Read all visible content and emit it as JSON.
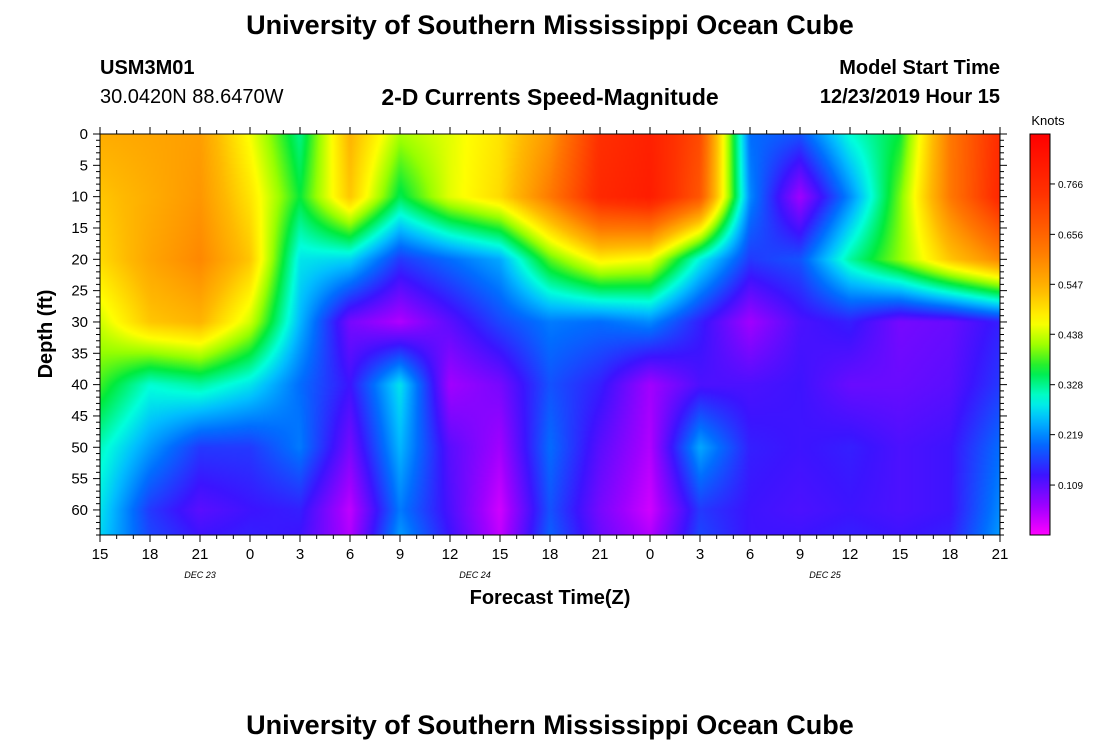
{
  "page": {
    "title_top": "University of Southern Mississippi Ocean Cube",
    "title_bottom": "University of Southern Mississippi Ocean Cube",
    "station_id": "USM3M01",
    "coordinates": "30.0420N 88.6470W",
    "product_title": "2-D Currents Speed-Magnitude",
    "model_start_label": "Model Start Time",
    "model_start_value": "12/23/2019 Hour 15"
  },
  "chart_data": {
    "type": "heatmap",
    "title": "2-D Currents Speed-Magnitude",
    "xlabel": "Forecast Time(Z)",
    "ylabel": "Depth (ft)",
    "x_tick_labels": [
      "15",
      "18",
      "21",
      "0",
      "3",
      "6",
      "9",
      "12",
      "15",
      "18",
      "21",
      "0",
      "3",
      "6",
      "9",
      "12",
      "15",
      "18",
      "21"
    ],
    "x_date_labels": [
      {
        "label": "DEC 23",
        "at_tick": 2
      },
      {
        "label": "DEC 24",
        "at_tick": 7.5
      },
      {
        "label": "DEC 25",
        "at_tick": 14.5
      }
    ],
    "y_ticks": [
      0,
      5,
      10,
      15,
      20,
      25,
      30,
      35,
      40,
      45,
      50,
      55,
      60
    ],
    "y_range": [
      0,
      64
    ],
    "x_range_hours": [
      0,
      54
    ],
    "colorbar": {
      "unit_label": "Knots",
      "range": [
        0,
        0.875
      ],
      "tick_values": [
        0.109,
        0.219,
        0.328,
        0.438,
        0.547,
        0.656,
        0.766
      ],
      "tick_labels": [
        "0.109",
        "0.219",
        "0.328",
        "0.438",
        "0.547",
        "0.656",
        "0.766"
      ]
    },
    "value_units": "knots",
    "approximate_field": {
      "note_x": "hours since 12/23/2019 15Z",
      "depth_ft": [
        0,
        10,
        20,
        30,
        40,
        50,
        60,
        64
      ],
      "hour": [
        0,
        3,
        6,
        9,
        12,
        15,
        18,
        21,
        24,
        27,
        30,
        33,
        36,
        39,
        42,
        45,
        48,
        51,
        54
      ],
      "values": [
        [
          0.55,
          0.56,
          0.57,
          0.46,
          0.33,
          0.54,
          0.42,
          0.45,
          0.49,
          0.58,
          0.75,
          0.79,
          0.7,
          0.2,
          0.18,
          0.3,
          0.36,
          0.62,
          0.76
        ],
        [
          0.52,
          0.55,
          0.58,
          0.49,
          0.36,
          0.52,
          0.35,
          0.45,
          0.5,
          0.62,
          0.77,
          0.8,
          0.68,
          0.22,
          0.06,
          0.22,
          0.4,
          0.62,
          0.77
        ],
        [
          0.5,
          0.56,
          0.6,
          0.52,
          0.28,
          0.27,
          0.16,
          0.2,
          0.24,
          0.39,
          0.48,
          0.46,
          0.29,
          0.16,
          0.18,
          0.32,
          0.41,
          0.52,
          0.6
        ],
        [
          0.44,
          0.52,
          0.54,
          0.44,
          0.25,
          0.09,
          0.05,
          0.11,
          0.17,
          0.21,
          0.2,
          0.22,
          0.14,
          0.06,
          0.12,
          0.14,
          0.09,
          0.1,
          0.14
        ],
        [
          0.38,
          0.3,
          0.32,
          0.28,
          0.2,
          0.13,
          0.28,
          0.06,
          0.09,
          0.18,
          0.14,
          0.06,
          0.12,
          0.12,
          0.13,
          0.1,
          0.1,
          0.11,
          0.16
        ],
        [
          0.31,
          0.23,
          0.16,
          0.16,
          0.21,
          0.09,
          0.25,
          0.11,
          0.06,
          0.2,
          0.11,
          0.05,
          0.24,
          0.14,
          0.13,
          0.14,
          0.12,
          0.13,
          0.2
        ],
        [
          0.28,
          0.16,
          0.11,
          0.13,
          0.14,
          0.04,
          0.21,
          0.12,
          0.03,
          0.18,
          0.09,
          0.03,
          0.16,
          0.13,
          0.12,
          0.13,
          0.12,
          0.13,
          0.22
        ],
        [
          0.27,
          0.17,
          0.13,
          0.14,
          0.13,
          0.05,
          0.23,
          0.13,
          0.04,
          0.19,
          0.1,
          0.05,
          0.17,
          0.13,
          0.13,
          0.14,
          0.13,
          0.14,
          0.23
        ]
      ]
    }
  }
}
